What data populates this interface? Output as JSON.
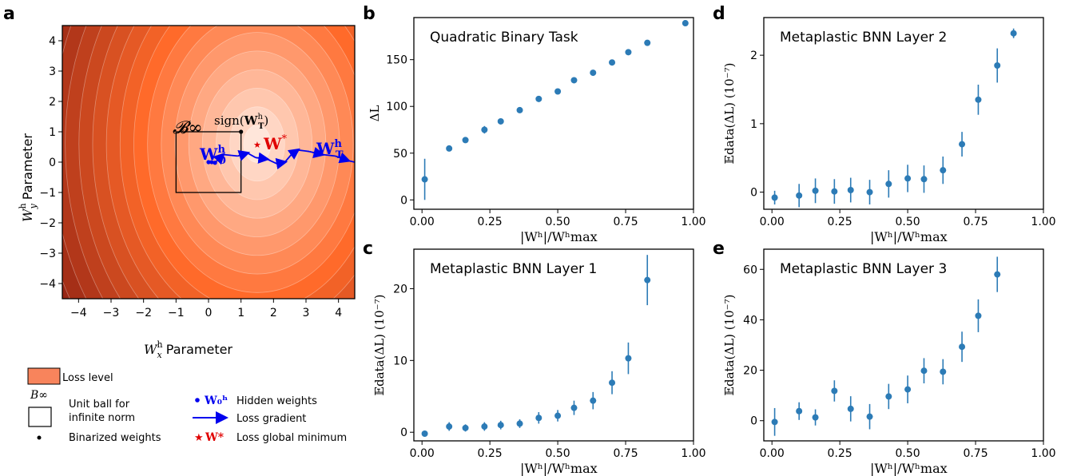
{
  "panel_letters": {
    "a": "a",
    "b": "b",
    "c": "c",
    "d": "d",
    "e": "e"
  },
  "panel_a": {
    "xlabel_sym": "W",
    "xlabel_sup": "h",
    "xlabel_sub": "x",
    "xlabel_word": "Parameter",
    "ylabel_sym": "W",
    "ylabel_sup": "h",
    "ylabel_sub": "y",
    "ylabel_word": "Parameter",
    "xticks": [
      -4,
      -3,
      -2,
      -1,
      0,
      1,
      2,
      3,
      4
    ],
    "yticks": [
      -4,
      -3,
      -2,
      -1,
      0,
      1,
      2,
      3,
      4
    ],
    "xlim": [
      -4.5,
      4.5
    ],
    "ylim": [
      -4.5,
      4.5
    ],
    "box_label": "𝓑∞",
    "sign_label_prefix": "sign(",
    "sign_label_W": "W",
    "sign_label_sup": "h",
    "sign_label_sub": "T",
    "sign_label_suffix": ")",
    "w0_label_W": "W",
    "w0_label_sup": "h",
    "w0_label_sub": "0",
    "wstar_label": "W",
    "wstar_sup": "*",
    "wt_label_W": "W",
    "wt_label_sup": "h",
    "wt_label_sub": "T",
    "minimum": [
      1.5,
      0.6
    ],
    "binarized_point": [
      1,
      1
    ],
    "unit_ball": [
      -1,
      1
    ],
    "hidden_weights": [
      [
        0.0,
        0.0
      ],
      [
        0.1,
        0.0
      ],
      [
        0.2,
        -0.02
      ]
    ],
    "trajectory": [
      [
        0.2,
        -0.02
      ],
      [
        0.45,
        0.25
      ],
      [
        0.9,
        0.2
      ],
      [
        1.2,
        0.3
      ],
      [
        1.45,
        0.15
      ],
      [
        1.8,
        0.1
      ],
      [
        2.1,
        -0.05
      ],
      [
        2.35,
        0.0
      ],
      [
        2.55,
        0.25
      ],
      [
        2.75,
        0.4
      ],
      [
        3.1,
        0.35
      ],
      [
        3.5,
        0.25
      ],
      [
        3.9,
        0.2
      ],
      [
        4.3,
        0.05
      ],
      [
        4.5,
        0.0
      ]
    ],
    "colors": {
      "dark": "#8b1e12",
      "mid": "#ff6a2a",
      "light": "#fff5f0",
      "traj": "#0000ee",
      "star": "#e00000"
    }
  },
  "legend": {
    "items": [
      {
        "symbol": "loss-level-swatch",
        "label": "Loss level"
      },
      {
        "symbol": "B∞",
        "label": "Unit ball for"
      },
      {
        "symbol": "",
        "label": "infinite norm"
      },
      {
        "symbol": "black-dot",
        "label": "Binarized weights"
      },
      {
        "symbol": "W₀ʰ",
        "label": "Hidden weights"
      },
      {
        "symbol": "blue-arrow",
        "label": "Loss gradient"
      },
      {
        "symbol": "W*",
        "label": "Loss global minimum"
      }
    ]
  },
  "chart_data": [
    {
      "panel": "b",
      "type": "scatter",
      "title": "Quadratic Binary Task",
      "xlabel": "|Wʰ|/Wʰmax",
      "ylabel": "ΔL",
      "xlim": [
        -0.03,
        1.0
      ],
      "ylim": [
        -10,
        195
      ],
      "xticks": [
        "0.00",
        "0.25",
        "0.50",
        "0.75",
        "1.00"
      ],
      "yticks": [
        "0",
        "50",
        "100",
        "150"
      ],
      "x": [
        0.01,
        0.1,
        0.16,
        0.23,
        0.29,
        0.36,
        0.43,
        0.5,
        0.56,
        0.63,
        0.7,
        0.76,
        0.83,
        0.97
      ],
      "y": [
        22,
        55,
        64,
        75,
        84,
        96,
        108,
        116,
        128,
        136,
        147,
        158,
        168,
        189
      ],
      "yerr": [
        22,
        2,
        3,
        4,
        3,
        3,
        3,
        3,
        3,
        3,
        3,
        3,
        3,
        2
      ],
      "color": "#2c7bb6"
    },
    {
      "panel": "c",
      "type": "scatter",
      "title": "Metaplastic BNN Layer 1",
      "xlabel": "|Wʰ|/Wʰmax",
      "ylabel": "𝔼data(ΔL) (10⁻⁷)",
      "xlim": [
        -0.03,
        1.0
      ],
      "ylim": [
        -1.2,
        25.5
      ],
      "xticks": [
        "0.00",
        "0.25",
        "0.50",
        "0.75",
        "1.00"
      ],
      "yticks": [
        "0",
        "10",
        "20"
      ],
      "x": [
        0.01,
        0.1,
        0.16,
        0.23,
        0.29,
        0.36,
        0.43,
        0.5,
        0.56,
        0.63,
        0.7,
        0.76,
        0.83
      ],
      "y": [
        -0.2,
        0.8,
        0.6,
        0.8,
        1.0,
        1.2,
        2.0,
        2.3,
        3.4,
        4.4,
        6.9,
        10.3,
        21.2
      ],
      "yerr": [
        0.1,
        0.6,
        0.5,
        0.6,
        0.6,
        0.6,
        0.8,
        0.8,
        1.0,
        1.2,
        1.6,
        2.2,
        3.5
      ],
      "color": "#2c7bb6"
    },
    {
      "panel": "d",
      "type": "scatter",
      "title": "Metaplastic BNN Layer 2",
      "xlabel": "|Wʰ|/Wʰmax",
      "ylabel": "𝔼data(ΔL) (10⁻⁷)",
      "xlim": [
        -0.03,
        1.0
      ],
      "ylim": [
        -0.25,
        2.55
      ],
      "xticks": [
        "0.00",
        "0.25",
        "0.50",
        "0.75",
        "1.00"
      ],
      "yticks": [
        "0",
        "1",
        "2"
      ],
      "x": [
        0.01,
        0.1,
        0.16,
        0.23,
        0.29,
        0.36,
        0.43,
        0.5,
        0.56,
        0.63,
        0.7,
        0.76,
        0.83,
        0.89
      ],
      "y": [
        -0.08,
        -0.05,
        0.02,
        0.01,
        0.03,
        0.0,
        0.12,
        0.2,
        0.19,
        0.32,
        0.7,
        1.35,
        1.85,
        2.32
      ],
      "yerr": [
        0.1,
        0.17,
        0.18,
        0.18,
        0.18,
        0.18,
        0.2,
        0.2,
        0.2,
        0.2,
        0.18,
        0.22,
        0.25,
        0.07
      ],
      "color": "#2c7bb6"
    },
    {
      "panel": "e",
      "type": "scatter",
      "title": "Metaplastic BNN Layer 3",
      "xlabel": "|Wʰ|/Wʰmax",
      "ylabel": "𝔼data(ΔL) (10⁻⁷)",
      "xlim": [
        -0.03,
        1.0
      ],
      "ylim": [
        -8,
        68
      ],
      "xticks": [
        "0.00",
        "0.25",
        "0.50",
        "0.75",
        "1.00"
      ],
      "yticks": [
        "0",
        "20",
        "40",
        "60"
      ],
      "x": [
        0.01,
        0.1,
        0.16,
        0.23,
        0.29,
        0.36,
        0.43,
        0.5,
        0.56,
        0.63,
        0.7,
        0.76,
        0.83
      ],
      "y": [
        -0.5,
        3.8,
        1.3,
        11.8,
        4.7,
        1.6,
        9.6,
        12.4,
        19.8,
        19.4,
        29.3,
        41.6,
        58
      ],
      "yerr": [
        5.5,
        3.5,
        3.2,
        4.2,
        5,
        5,
        5,
        5.5,
        5,
        5,
        6,
        6.5,
        7
      ],
      "color": "#2c7bb6"
    }
  ]
}
